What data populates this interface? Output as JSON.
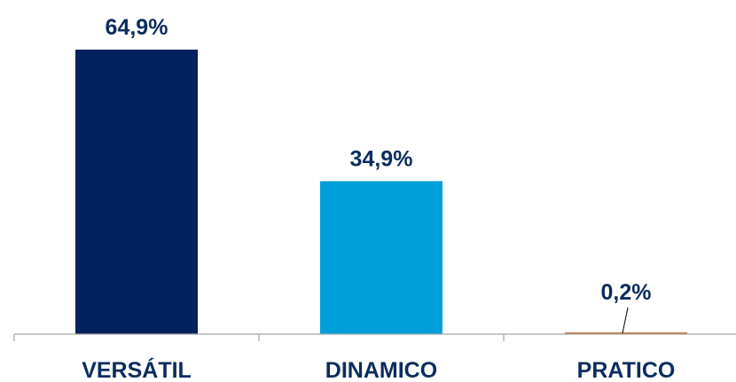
{
  "chart_data": {
    "type": "bar",
    "categories": [
      "VERSÁTIL",
      "DINAMICO",
      "PRATICO"
    ],
    "values": [
      64.9,
      34.9,
      0.2
    ],
    "value_labels": [
      "64,9%",
      "34,9%",
      "0,2%"
    ],
    "colors": [
      "#03215c",
      "#009fdb",
      "#c97d3e"
    ],
    "title": "",
    "xlabel": "",
    "ylabel": "",
    "ylim": [
      0,
      64.9
    ],
    "grid": false,
    "legend": "none"
  }
}
